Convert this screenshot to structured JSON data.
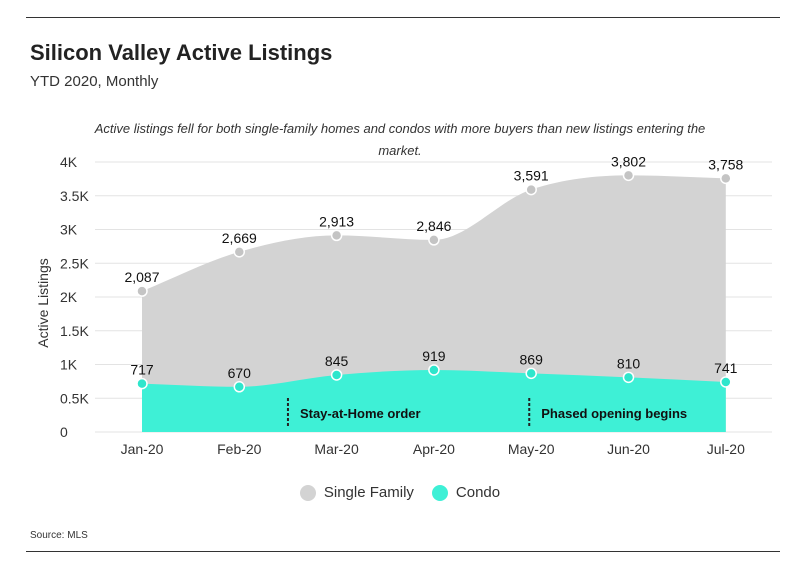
{
  "title": "Silicon Valley Active Listings",
  "subtitle": "YTD 2020, Monthly",
  "annotation": "Active listings fell for both single-family homes and condos with more buyers than new listings entering the market.",
  "source": "Source: MLS",
  "colors": {
    "single_family": "#d3d3d3",
    "single_family_marker": "#c4c4c4",
    "condo": "#3ef0d6",
    "condo_marker": "#2ee6cc",
    "gridline": "#e3e3e3"
  },
  "chart_data": {
    "type": "area",
    "categories": [
      "Jan-20",
      "Feb-20",
      "Mar-20",
      "Apr-20",
      "May-20",
      "Jun-20",
      "Jul-20"
    ],
    "series": [
      {
        "name": "Single Family",
        "values": [
          2087,
          2669,
          2913,
          2846,
          3591,
          3802,
          3758
        ],
        "labels": [
          "2,087",
          "2,669",
          "2,913",
          "2,846",
          "3,591",
          "3,802",
          "3,758"
        ]
      },
      {
        "name": "Condo",
        "values": [
          717,
          670,
          845,
          919,
          869,
          810,
          741
        ],
        "labels": [
          "717",
          "670",
          "845",
          "919",
          "869",
          "810",
          "741"
        ]
      }
    ],
    "ylabel": "Active Listings",
    "ylim": [
      0,
      4000
    ],
    "yticks": [
      0,
      500,
      1000,
      1500,
      2000,
      2500,
      3000,
      3500,
      4000
    ],
    "ytick_labels": [
      "0",
      "0.5K",
      "1K",
      "1.5K",
      "2K",
      "2.5K",
      "3K",
      "3.5K",
      "4K"
    ],
    "grid": true,
    "legend_position": "bottom",
    "events": [
      {
        "label": "Stay-at-Home order",
        "x": 1.5
      },
      {
        "label": "Phased opening begins",
        "x": 3.98
      }
    ]
  }
}
